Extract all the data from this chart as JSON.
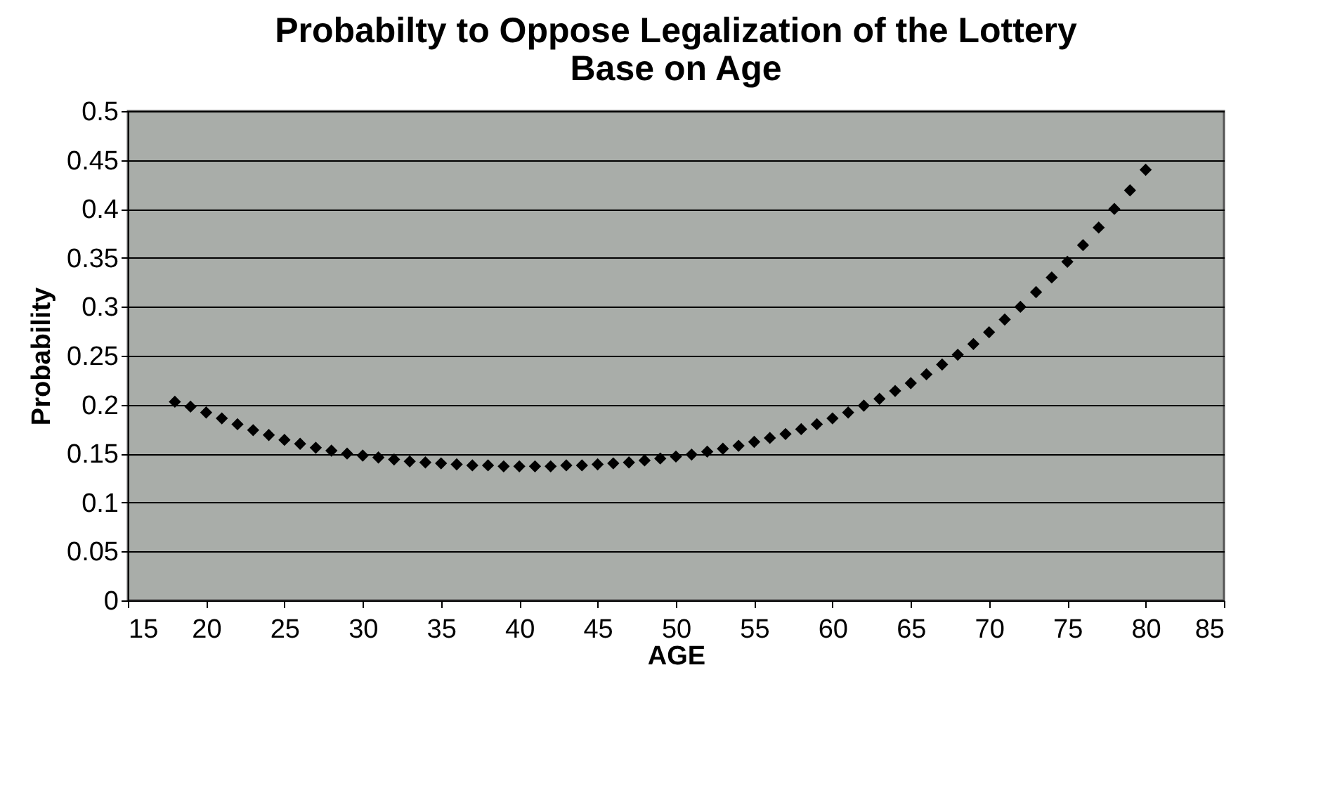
{
  "chart_data": {
    "type": "scatter",
    "title": "Probabilty to Oppose Legalization of the Lottery Base on Age",
    "xlabel": "AGE",
    "ylabel": "Probability",
    "x": [
      18,
      19,
      20,
      21,
      22,
      23,
      24,
      25,
      26,
      27,
      28,
      29,
      30,
      31,
      32,
      33,
      34,
      35,
      36,
      37,
      38,
      39,
      40,
      41,
      42,
      43,
      44,
      45,
      46,
      47,
      48,
      49,
      50,
      51,
      52,
      53,
      54,
      55,
      56,
      57,
      58,
      59,
      60,
      61,
      62,
      63,
      64,
      65,
      66,
      67,
      68,
      69,
      70,
      71,
      72,
      73,
      74,
      75,
      76,
      77,
      78,
      79,
      80
    ],
    "series": [
      {
        "color": "#000000",
        "values": [
          0.203,
          0.198,
          0.192,
          0.186,
          0.18,
          0.174,
          0.169,
          0.164,
          0.16,
          0.156,
          0.153,
          0.15,
          0.148,
          0.146,
          0.144,
          0.142,
          0.141,
          0.14,
          0.139,
          0.138,
          0.138,
          0.137,
          0.137,
          0.137,
          0.137,
          0.138,
          0.138,
          0.139,
          0.14,
          0.141,
          0.143,
          0.145,
          0.147,
          0.149,
          0.152,
          0.155,
          0.158,
          0.162,
          0.166,
          0.17,
          0.175,
          0.18,
          0.186,
          0.192,
          0.199,
          0.206,
          0.214,
          0.222,
          0.231,
          0.241,
          0.251,
          0.262,
          0.274,
          0.287,
          0.3,
          0.315,
          0.33,
          0.346,
          0.363,
          0.381,
          0.4,
          0.419,
          0.44
        ]
      }
    ],
    "xlim": [
      15,
      85
    ],
    "xticks": [
      15,
      20,
      25,
      30,
      35,
      40,
      45,
      50,
      55,
      60,
      65,
      70,
      75,
      80,
      85
    ],
    "ylim": [
      0,
      0.5
    ],
    "yticks": [
      0,
      0.05,
      0.1,
      0.15,
      0.2,
      0.25,
      0.3,
      0.35,
      0.4,
      0.45,
      0.5
    ],
    "grid": "y",
    "marker": "diamond",
    "legend": false
  }
}
